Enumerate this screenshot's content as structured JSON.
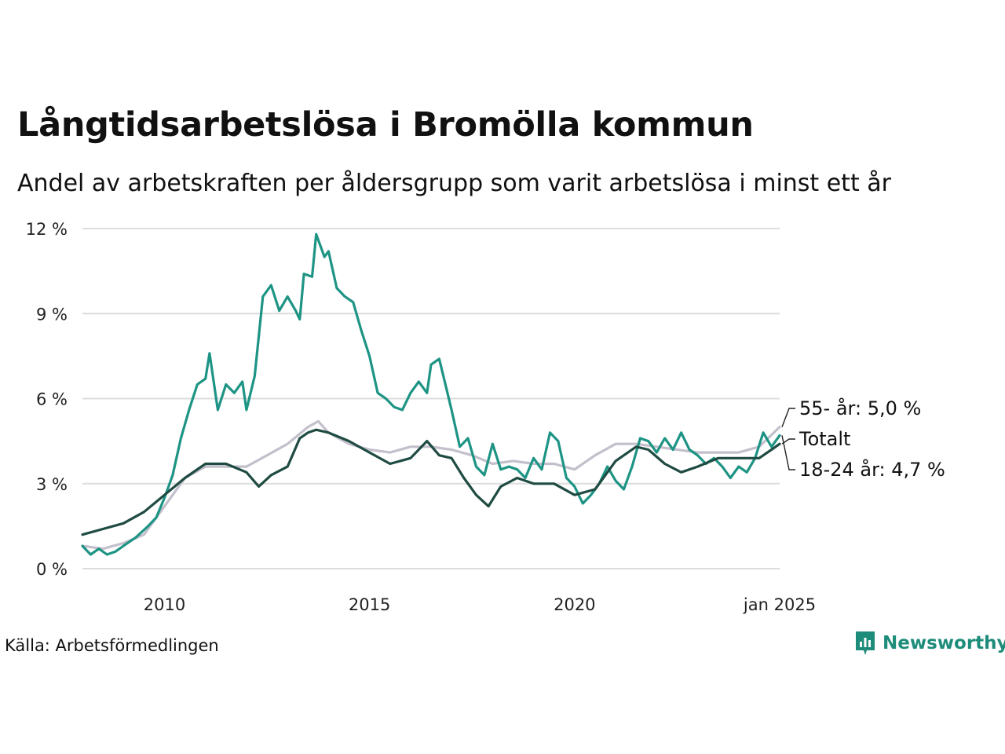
{
  "title": "Långtidsarbetslösa i Bromölla kommun",
  "subtitle": "Andel av arbetskraften per åldersgrupp som varit arbetslösa i minst ett år",
  "source": "Källa: Arbetsförmedlingen",
  "brand": "Newsworthy",
  "chart_data": {
    "type": "line",
    "x_range": [
      "2008-01",
      "2025-01"
    ],
    "ylim": [
      0,
      12
    ],
    "y_ticks": [
      0,
      3,
      6,
      9,
      12
    ],
    "y_tick_labels": [
      "0 %",
      "3 %",
      "6 %",
      "9 %",
      "12 %"
    ],
    "x_ticks": [
      2010,
      2015,
      2020,
      2025
    ],
    "x_tick_labels": [
      "2010",
      "2015",
      "2020",
      "jan 2025"
    ],
    "grid": "horizontal",
    "end_labels": {
      "age55": "55- år: 5,0 %",
      "total": "Totalt",
      "age18_24": "18-24 år: 4,7 %"
    },
    "series": [
      {
        "key": "age55",
        "color": "#c3c0cc",
        "points": [
          [
            2008.0,
            0.8
          ],
          [
            2008.5,
            0.7
          ],
          [
            2009.0,
            0.9
          ],
          [
            2009.5,
            1.2
          ],
          [
            2010.0,
            2.2
          ],
          [
            2010.5,
            3.2
          ],
          [
            2011.0,
            3.6
          ],
          [
            2011.5,
            3.6
          ],
          [
            2012.0,
            3.6
          ],
          [
            2012.5,
            4.0
          ],
          [
            2013.0,
            4.4
          ],
          [
            2013.5,
            5.0
          ],
          [
            2013.75,
            5.2
          ],
          [
            2014.0,
            4.8
          ],
          [
            2014.5,
            4.4
          ],
          [
            2015.0,
            4.2
          ],
          [
            2015.5,
            4.1
          ],
          [
            2016.0,
            4.3
          ],
          [
            2016.5,
            4.3
          ],
          [
            2017.0,
            4.2
          ],
          [
            2017.5,
            4.0
          ],
          [
            2018.0,
            3.7
          ],
          [
            2018.5,
            3.8
          ],
          [
            2019.0,
            3.7
          ],
          [
            2019.5,
            3.7
          ],
          [
            2020.0,
            3.5
          ],
          [
            2020.5,
            4.0
          ],
          [
            2021.0,
            4.4
          ],
          [
            2021.5,
            4.4
          ],
          [
            2022.0,
            4.3
          ],
          [
            2022.5,
            4.2
          ],
          [
            2023.0,
            4.1
          ],
          [
            2023.5,
            4.1
          ],
          [
            2024.0,
            4.1
          ],
          [
            2024.5,
            4.3
          ],
          [
            2025.0,
            5.0
          ]
        ]
      },
      {
        "key": "age18_24",
        "color": "#1e9485",
        "points": [
          [
            2008.0,
            0.8
          ],
          [
            2008.2,
            0.5
          ],
          [
            2008.4,
            0.7
          ],
          [
            2008.6,
            0.5
          ],
          [
            2008.8,
            0.6
          ],
          [
            2009.0,
            0.8
          ],
          [
            2009.3,
            1.1
          ],
          [
            2009.6,
            1.5
          ],
          [
            2009.8,
            1.8
          ],
          [
            2010.0,
            2.5
          ],
          [
            2010.2,
            3.3
          ],
          [
            2010.4,
            4.6
          ],
          [
            2010.6,
            5.6
          ],
          [
            2010.8,
            6.5
          ],
          [
            2011.0,
            6.7
          ],
          [
            2011.1,
            7.6
          ],
          [
            2011.3,
            5.6
          ],
          [
            2011.5,
            6.5
          ],
          [
            2011.7,
            6.2
          ],
          [
            2011.9,
            6.6
          ],
          [
            2012.0,
            5.6
          ],
          [
            2012.2,
            6.8
          ],
          [
            2012.4,
            9.6
          ],
          [
            2012.6,
            10.0
          ],
          [
            2012.8,
            9.1
          ],
          [
            2013.0,
            9.6
          ],
          [
            2013.2,
            9.1
          ],
          [
            2013.3,
            8.8
          ],
          [
            2013.4,
            10.4
          ],
          [
            2013.6,
            10.3
          ],
          [
            2013.7,
            11.8
          ],
          [
            2013.9,
            11.0
          ],
          [
            2014.0,
            11.2
          ],
          [
            2014.2,
            9.9
          ],
          [
            2014.4,
            9.6
          ],
          [
            2014.6,
            9.4
          ],
          [
            2014.8,
            8.4
          ],
          [
            2015.0,
            7.5
          ],
          [
            2015.2,
            6.2
          ],
          [
            2015.4,
            6.0
          ],
          [
            2015.6,
            5.7
          ],
          [
            2015.8,
            5.6
          ],
          [
            2016.0,
            6.2
          ],
          [
            2016.2,
            6.6
          ],
          [
            2016.4,
            6.2
          ],
          [
            2016.5,
            7.2
          ],
          [
            2016.7,
            7.4
          ],
          [
            2016.9,
            6.2
          ],
          [
            2017.0,
            5.6
          ],
          [
            2017.2,
            4.3
          ],
          [
            2017.4,
            4.6
          ],
          [
            2017.6,
            3.6
          ],
          [
            2017.8,
            3.3
          ],
          [
            2018.0,
            4.4
          ],
          [
            2018.2,
            3.5
          ],
          [
            2018.4,
            3.6
          ],
          [
            2018.6,
            3.5
          ],
          [
            2018.8,
            3.2
          ],
          [
            2019.0,
            3.9
          ],
          [
            2019.2,
            3.5
          ],
          [
            2019.4,
            4.8
          ],
          [
            2019.6,
            4.5
          ],
          [
            2019.8,
            3.2
          ],
          [
            2020.0,
            2.9
          ],
          [
            2020.2,
            2.3
          ],
          [
            2020.4,
            2.6
          ],
          [
            2020.6,
            3.0
          ],
          [
            2020.8,
            3.6
          ],
          [
            2021.0,
            3.1
          ],
          [
            2021.2,
            2.8
          ],
          [
            2021.4,
            3.6
          ],
          [
            2021.6,
            4.6
          ],
          [
            2021.8,
            4.5
          ],
          [
            2022.0,
            4.1
          ],
          [
            2022.2,
            4.6
          ],
          [
            2022.4,
            4.2
          ],
          [
            2022.6,
            4.8
          ],
          [
            2022.8,
            4.2
          ],
          [
            2023.0,
            4.0
          ],
          [
            2023.2,
            3.7
          ],
          [
            2023.4,
            3.9
          ],
          [
            2023.6,
            3.6
          ],
          [
            2023.8,
            3.2
          ],
          [
            2024.0,
            3.6
          ],
          [
            2024.2,
            3.4
          ],
          [
            2024.4,
            3.9
          ],
          [
            2024.6,
            4.8
          ],
          [
            2024.8,
            4.3
          ],
          [
            2025.0,
            4.7
          ]
        ]
      },
      {
        "key": "total",
        "color": "#1f4b43",
        "points": [
          [
            2008.0,
            1.2
          ],
          [
            2008.5,
            1.4
          ],
          [
            2009.0,
            1.6
          ],
          [
            2009.5,
            2.0
          ],
          [
            2010.0,
            2.6
          ],
          [
            2010.5,
            3.2
          ],
          [
            2011.0,
            3.7
          ],
          [
            2011.5,
            3.7
          ],
          [
            2012.0,
            3.4
          ],
          [
            2012.3,
            2.9
          ],
          [
            2012.6,
            3.3
          ],
          [
            2013.0,
            3.6
          ],
          [
            2013.3,
            4.6
          ],
          [
            2013.5,
            4.8
          ],
          [
            2013.7,
            4.9
          ],
          [
            2014.0,
            4.8
          ],
          [
            2014.5,
            4.5
          ],
          [
            2015.0,
            4.1
          ],
          [
            2015.5,
            3.7
          ],
          [
            2016.0,
            3.9
          ],
          [
            2016.4,
            4.5
          ],
          [
            2016.7,
            4.0
          ],
          [
            2017.0,
            3.9
          ],
          [
            2017.3,
            3.2
          ],
          [
            2017.6,
            2.6
          ],
          [
            2017.9,
            2.2
          ],
          [
            2018.2,
            2.9
          ],
          [
            2018.6,
            3.2
          ],
          [
            2019.0,
            3.0
          ],
          [
            2019.5,
            3.0
          ],
          [
            2020.0,
            2.6
          ],
          [
            2020.5,
            2.8
          ],
          [
            2021.0,
            3.8
          ],
          [
            2021.5,
            4.3
          ],
          [
            2021.8,
            4.2
          ],
          [
            2022.2,
            3.7
          ],
          [
            2022.6,
            3.4
          ],
          [
            2023.0,
            3.6
          ],
          [
            2023.5,
            3.9
          ],
          [
            2024.0,
            3.9
          ],
          [
            2024.5,
            3.9
          ],
          [
            2024.8,
            4.2
          ],
          [
            2025.0,
            4.4
          ]
        ]
      }
    ]
  }
}
